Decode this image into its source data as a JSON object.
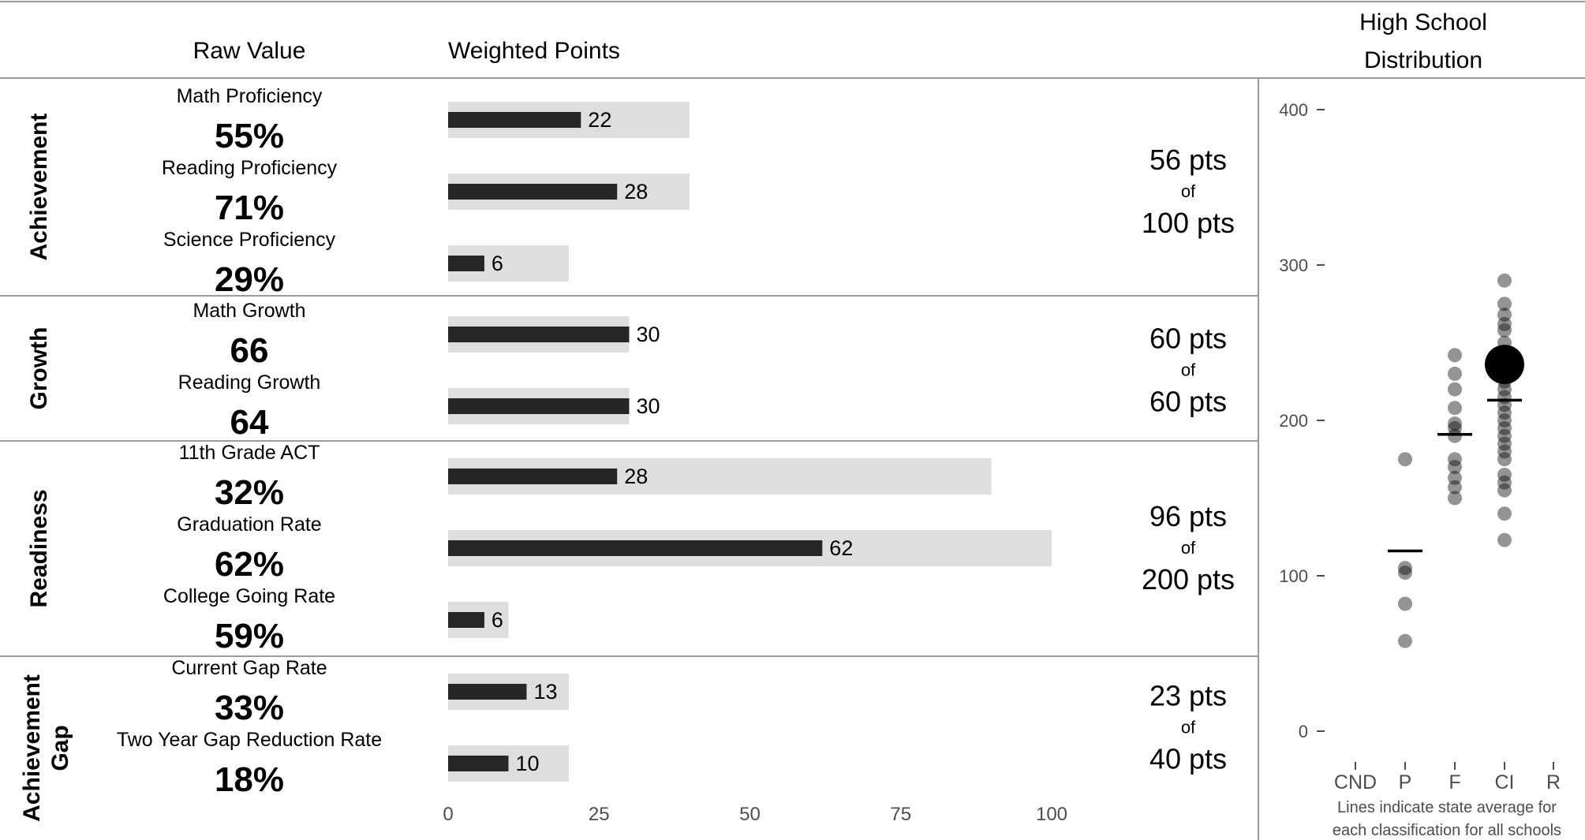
{
  "header": {
    "raw_value": "Raw Value",
    "weighted_points": "Weighted Points",
    "distribution_line1": "High School",
    "distribution_line2": "Distribution"
  },
  "sections": [
    {
      "label": [
        "Achievement"
      ],
      "total": "56 pts",
      "of": "of",
      "max": "100 pts",
      "metrics": [
        {
          "name": "Math Proficiency",
          "value": "55%",
          "points": 22,
          "max_points": 40
        },
        {
          "name": "Reading Proficiency",
          "value": "71%",
          "points": 28,
          "max_points": 40
        },
        {
          "name": "Science Proficiency",
          "value": "29%",
          "points": 6,
          "max_points": 20
        }
      ]
    },
    {
      "label": [
        "Growth"
      ],
      "total": "60 pts",
      "of": "of",
      "max": "60 pts",
      "metrics": [
        {
          "name": "Math Growth",
          "value": "66",
          "points": 30,
          "max_points": 30
        },
        {
          "name": "Reading Growth",
          "value": "64",
          "points": 30,
          "max_points": 30
        }
      ]
    },
    {
      "label": [
        "Readiness"
      ],
      "total": "96 pts",
      "of": "of",
      "max": "200 pts",
      "metrics": [
        {
          "name": "11th Grade ACT",
          "value": "32%",
          "points": 28,
          "max_points": 90
        },
        {
          "name": "Graduation Rate",
          "value": "62%",
          "points": 62,
          "max_points": 100
        },
        {
          "name": "College Going Rate",
          "value": "59%",
          "points": 6,
          "max_points": 10
        }
      ]
    },
    {
      "label": [
        "Achievement",
        "Gap"
      ],
      "total": "23 pts",
      "of": "of",
      "max": "40 pts",
      "metrics": [
        {
          "name": "Current Gap Rate",
          "value": "33%",
          "points": 13,
          "max_points": 20
        },
        {
          "name": "Two Year Gap Reduction Rate",
          "value": "18%",
          "points": 10,
          "max_points": 20
        }
      ]
    }
  ],
  "axis": {
    "ticks": [
      0,
      25,
      50,
      75,
      100
    ],
    "xlim": [
      0,
      100
    ]
  },
  "distribution": {
    "categories": [
      "CND",
      "P",
      "F",
      "CI",
      "R"
    ],
    "y_ticks": [
      0,
      100,
      200,
      300,
      400
    ],
    "ylim": [
      0,
      400
    ],
    "note_line1": "Lines indicate state average for",
    "note_line2": "each classification for all schools"
  },
  "chart_data": [
    {
      "type": "bar",
      "xlabel": "",
      "ylabel": "",
      "xlim": [
        0,
        100
      ],
      "categories": [
        "Math Proficiency",
        "Reading Proficiency",
        "Science Proficiency",
        "Math Growth",
        "Reading Growth",
        "11th Grade ACT",
        "Graduation Rate",
        "College Going Rate",
        "Current Gap Rate",
        "Two Year Gap Reduction Rate"
      ],
      "series": [
        {
          "name": "",
          "values": [
            22,
            28,
            6,
            30,
            30,
            28,
            62,
            6,
            13,
            10
          ]
        },
        {
          "name": "",
          "values": [
            40,
            40,
            20,
            30,
            30,
            90,
            100,
            10,
            20,
            20
          ]
        }
      ]
    },
    {
      "type": "scatter",
      "categories": [
        "CND",
        "P",
        "F",
        "CI",
        "R"
      ],
      "ylim": [
        0,
        400
      ],
      "series": [
        {
          "name": "",
          "category": "P",
          "y": [
            58,
            82,
            102,
            105,
            175
          ]
        },
        {
          "name": "",
          "category": "F",
          "y": [
            150,
            157,
            163,
            170,
            175,
            190,
            195,
            198,
            208,
            220,
            230,
            242
          ]
        },
        {
          "name": "",
          "category": "CI",
          "y": [
            123,
            140,
            155,
            160,
            165,
            175,
            180,
            185,
            190,
            195,
            200,
            205,
            210,
            215,
            220,
            225,
            230,
            240,
            250,
            258,
            262,
            268,
            275,
            290
          ]
        }
      ],
      "highlight": {
        "category": "CI",
        "y": 236
      },
      "averages": [
        {
          "category": "P",
          "y": 116
        },
        {
          "category": "F",
          "y": 191
        },
        {
          "category": "CI",
          "y": 213
        }
      ]
    }
  ]
}
